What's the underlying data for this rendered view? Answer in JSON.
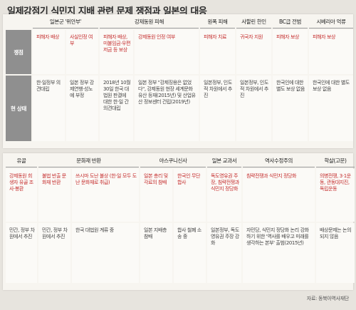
{
  "title": "일제강점기 식민지 지배 관련 문제 쟁점과 일본의 대응",
  "row_labels": {
    "issue": "쟁점",
    "status": "현 상태"
  },
  "top": {
    "headers": [
      "일본군 '위안부'",
      "강제동원 피해",
      "원폭 피해",
      "사할린 한인",
      "BC급 전범",
      "시베리아 억류"
    ],
    "issues": [
      "피해자 배상",
      "사실인정 여부",
      "피해자 배상, 미불임금·우편저금 등 보상",
      "강제동원 인정 여부",
      "피해자 치료",
      "귀국자 지원",
      "피해자 보상",
      "피해자 보상"
    ],
    "status": [
      "한·일정부 의견대립",
      "일본 정부 강제연행·성노예 부정",
      "2018년 10월30일 한국 대법원 판결에 대한 한·일 간 의견대립",
      "일본 정부 \"강제징용은 없었다\", 강제동원 현장 세계문화유산 등재(2015년) 및 산업유산 정보센터 건립(2019년)",
      "일본정부, 인도적 차원에서 추진",
      "일본정부, 인도적 차원에서 추진",
      "한국인에 대한 별도 보상 없음",
      "한국인에 대한 별도 보상 없음"
    ]
  },
  "bottom": {
    "headers": [
      "유골",
      "문화재 반환",
      "야스쿠니신사",
      "일본 교과서",
      "역사수정주의",
      "학살(고문)"
    ],
    "issues": [
      "강제동원 희생자 유골 조사·봉환",
      "불법 반출 문화재 반환",
      "쓰시마 도난 불상 (한·일 모두 도난 문화재로 취급)",
      "일본 총리 및 각료의 참배",
      "한국인 무단합사",
      "독도영유권 주장, 침략전쟁과 식민지 정당화",
      "침략전쟁과 식민지 정당화",
      "의병전쟁, 3·1운동, 관동대지진, 독립운동"
    ],
    "status": [
      "민간, 정부 차원에서 추진",
      "민간, 정부 차원에서 추진",
      "한국 대법원 계류 중",
      "일본 지배층 참배",
      "합사 철폐 소송 중",
      "일본정부, 독도 영유권 주장 강화",
      "자민당, 식민지 정당화 논리 강화하기 위한 '역사를 배우고 미래를 생각하는 본부' 출범(2015년)",
      "배상문제는 논의되지 않음"
    ]
  },
  "source": "자료: 동북아역사재단"
}
